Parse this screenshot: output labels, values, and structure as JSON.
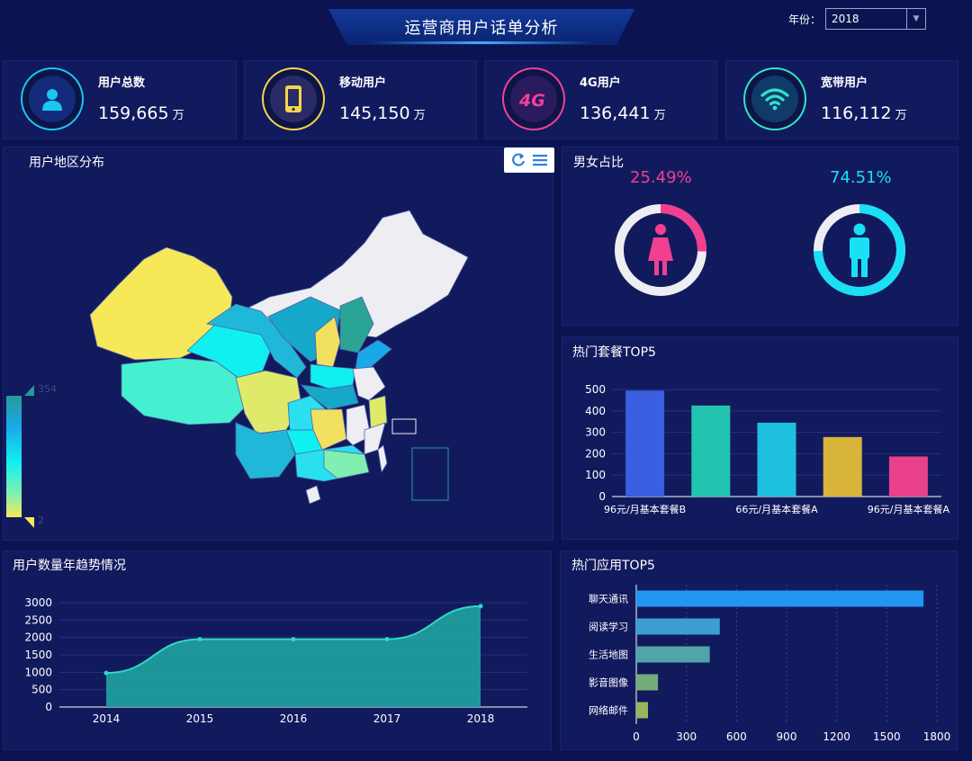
{
  "header": {
    "title": "运营商用户话单分析",
    "year_label": "年份：",
    "year_value": "2018"
  },
  "stats": [
    {
      "label": "用户总数",
      "value": "159,665",
      "unit": "万",
      "icon": "user-icon",
      "color": "#19c7f0"
    },
    {
      "label": "移动用户",
      "value": "145,150",
      "unit": "万",
      "icon": "mobile-phone-icon",
      "color": "#f5d54a"
    },
    {
      "label": "4G用户",
      "value": "136,441",
      "unit": "万",
      "icon": "4g-icon",
      "color": "#f2419a"
    },
    {
      "label": "宽带用户",
      "value": "116,112",
      "unit": "万",
      "icon": "wifi-icon",
      "color": "#2ee6c8"
    }
  ],
  "map": {
    "title": "用户地区分布",
    "legend_max": "354",
    "legend_min": "2"
  },
  "gender": {
    "title": "男女占比",
    "female_pct": "25.49%",
    "male_pct": "74.51%",
    "female_ratio": 0.2549,
    "male_ratio": 0.7451,
    "female_color": "#f0408f",
    "male_color": "#19e0f5"
  },
  "chart_data": [
    {
      "type": "bar",
      "title": "热门套餐TOP5",
      "categories": [
        "96元/月基本套餐B",
        "",
        "66元/月基本套餐A",
        "",
        "96元/月基本套餐A"
      ],
      "values": [
        495,
        425,
        345,
        278,
        187
      ],
      "colors": [
        "#3a5fe0",
        "#22c4b0",
        "#1ec0e0",
        "#d9b43a",
        "#e8408a"
      ],
      "ylim": [
        0,
        500
      ],
      "yticks": [
        "0",
        "100",
        "200",
        "300",
        "400",
        "500"
      ]
    },
    {
      "type": "area",
      "title": "用户数量年趋势情况",
      "x": [
        "2014",
        "2015",
        "2016",
        "2017",
        "2018"
      ],
      "values": [
        980,
        1950,
        1950,
        1950,
        2900
      ],
      "ylim": [
        0,
        3000
      ],
      "yticks": [
        "0",
        "500",
        "1000",
        "1500",
        "2000",
        "2500",
        "3000"
      ],
      "color": "#20a3a0"
    },
    {
      "type": "bar",
      "title": "热门应用TOP5",
      "orientation": "horizontal",
      "categories": [
        "聊天通讯",
        "阅读学习",
        "生活地图",
        "影音图像",
        "网络邮件"
      ],
      "values": [
        1720,
        500,
        440,
        130,
        70
      ],
      "colors": [
        "#2196f3",
        "#3d9ed4",
        "#4fa5a8",
        "#72ad7a",
        "#9ab55a"
      ],
      "xlim": [
        0,
        1800
      ],
      "xticks": [
        "0",
        "300",
        "600",
        "900",
        "1200",
        "1500",
        "1800"
      ]
    }
  ]
}
